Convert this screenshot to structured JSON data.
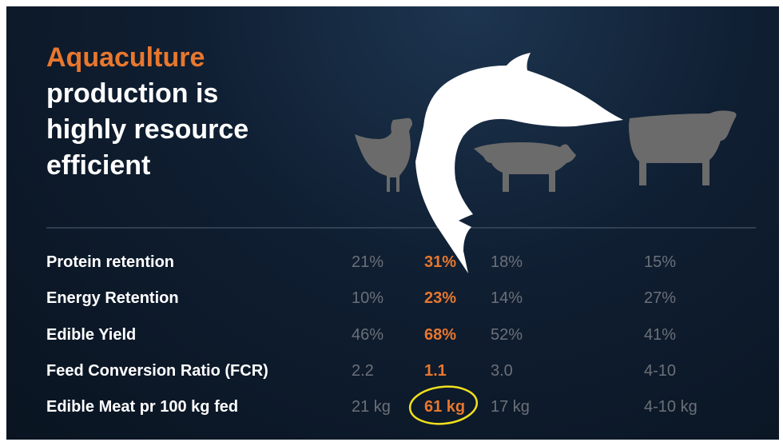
{
  "title": {
    "highlight": "Aquaculture",
    "lines": [
      "production is",
      "highly resource",
      "efficient"
    ]
  },
  "table": {
    "rows": [
      [
        "Protein retention",
        "21%",
        "31%",
        "18%",
        "15%"
      ],
      [
        "Energy Retention",
        "10%",
        "23%",
        "14%",
        "27%"
      ],
      [
        "Edible Yield",
        "46%",
        "68%",
        "52%",
        "41%"
      ],
      [
        "Feed Conversion Ratio (FCR)",
        "2.2",
        "1.1",
        "3.0",
        "4-10"
      ],
      [
        "Edible Meat pr 100 kg fed",
        "21 kg",
        "61 kg",
        "17 kg",
        "4-10 kg"
      ]
    ]
  }
}
